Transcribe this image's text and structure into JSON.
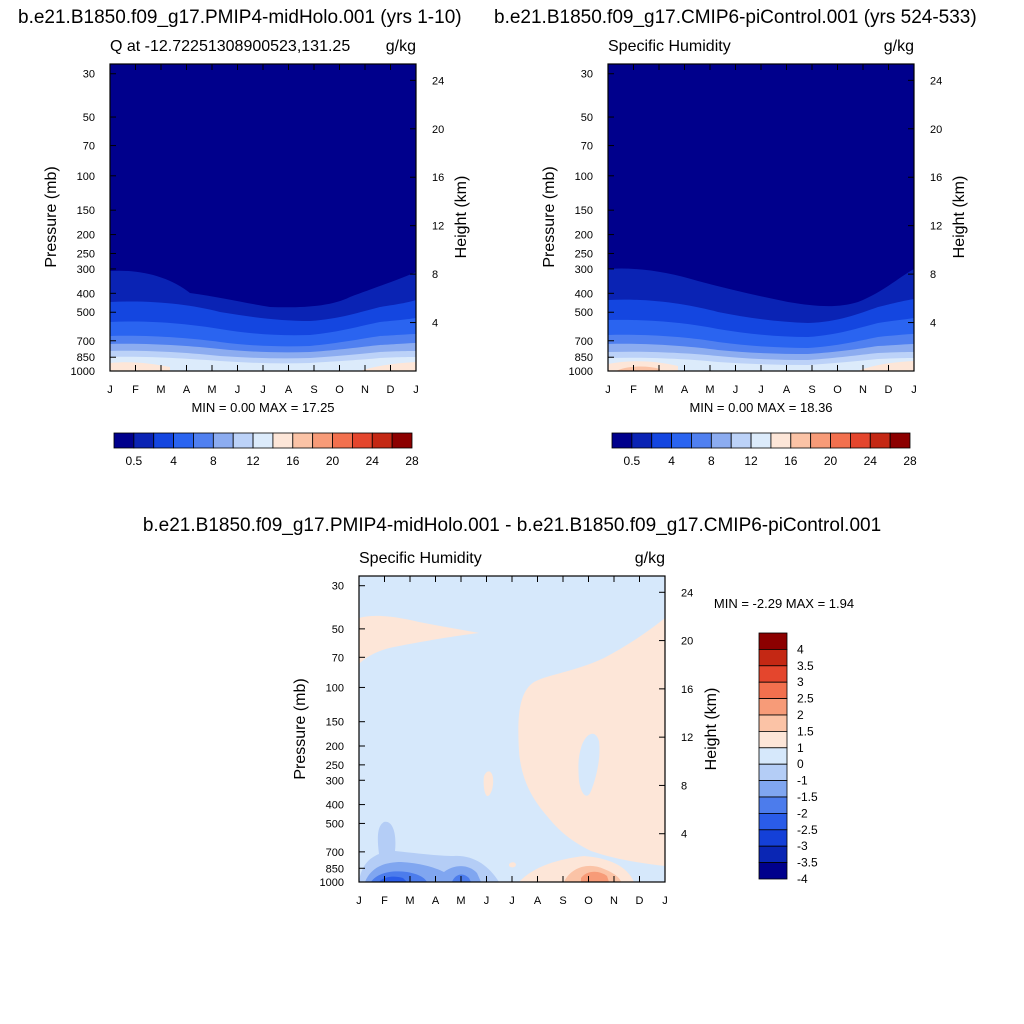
{
  "chart_data": [
    {
      "type": "heatmap",
      "title": "b.e21.B1850.f09_g17.PMIP4-midHolo.001 (yrs 1-10)",
      "subtitle_left": "Q at -12.72251308900523,131.25",
      "subtitle_right": "g/kg",
      "ylabel": "Pressure (mb)",
      "ylabel_right": "Height (km)",
      "x": [
        "J",
        "F",
        "M",
        "A",
        "M",
        "J",
        "J",
        "A",
        "S",
        "O",
        "N",
        "D",
        "J"
      ],
      "y_ticks": [
        "30",
        "50",
        "70",
        "100",
        "150",
        "200",
        "250",
        "300",
        "400",
        "500",
        "700",
        "850",
        "1000"
      ],
      "y_right_ticks": [
        "24",
        "20",
        "16",
        "12",
        "8",
        "4"
      ],
      "minmax": "MIN =   0.00 MAX =  17.25",
      "colorbar_labels": [
        "0.5",
        "4",
        "8",
        "12",
        "16",
        "20",
        "24",
        "28"
      ],
      "colorbar_colors": [
        "#00008c",
        "#0a23b4",
        "#1446e0",
        "#2a64f0",
        "#5080f0",
        "#8cacf0",
        "#bcd2f8",
        "#dcebfb",
        "#fde6d8",
        "#fbc3a6",
        "#f79b78",
        "#f2704e",
        "#e4462d",
        "#c42814",
        "#8c0000"
      ]
    },
    {
      "type": "heatmap",
      "title": "b.e21.B1850.f09_g17.CMIP6-piControl.001 (yrs 524-533)",
      "subtitle_left": "Specific Humidity",
      "subtitle_right": "g/kg",
      "ylabel": "Pressure (mb)",
      "ylabel_right": "Height (km)",
      "x": [
        "J",
        "F",
        "M",
        "A",
        "M",
        "J",
        "J",
        "A",
        "S",
        "O",
        "N",
        "D",
        "J"
      ],
      "y_ticks": [
        "30",
        "50",
        "70",
        "100",
        "150",
        "200",
        "250",
        "300",
        "400",
        "500",
        "700",
        "850",
        "1000"
      ],
      "y_right_ticks": [
        "24",
        "20",
        "16",
        "12",
        "8",
        "4"
      ],
      "minmax": "MIN =   0.00 MAX =  18.36",
      "colorbar_labels": [
        "0.5",
        "4",
        "8",
        "12",
        "16",
        "20",
        "24",
        "28"
      ],
      "colorbar_colors": [
        "#00008c",
        "#0a23b4",
        "#1446e0",
        "#2a64f0",
        "#5080f0",
        "#8cacf0",
        "#bcd2f8",
        "#dcebfb",
        "#fde6d8",
        "#fbc3a6",
        "#f79b78",
        "#f2704e",
        "#e4462d",
        "#c42814",
        "#8c0000"
      ]
    },
    {
      "type": "heatmap",
      "title": "b.e21.B1850.f09_g17.PMIP4-midHolo.001 - b.e21.B1850.f09_g17.CMIP6-piControl.001",
      "subtitle_left": "Specific Humidity",
      "subtitle_right": "g/kg",
      "ylabel": "Pressure (mb)",
      "ylabel_right": "Height (km)",
      "x": [
        "J",
        "F",
        "M",
        "A",
        "M",
        "J",
        "J",
        "A",
        "S",
        "O",
        "N",
        "D",
        "J"
      ],
      "y_ticks": [
        "30",
        "50",
        "70",
        "100",
        "150",
        "200",
        "250",
        "300",
        "400",
        "500",
        "700",
        "850",
        "1000"
      ],
      "y_right_ticks": [
        "24",
        "20",
        "16",
        "12",
        "8",
        "4"
      ],
      "minmax": "MIN =  -2.29 MAX =   1.94",
      "colorbar_labels": [
        "4",
        "3.5",
        "3",
        "2.5",
        "2",
        "1.5",
        "1",
        "0",
        "-1",
        "-1.5",
        "-2",
        "-2.5",
        "-3",
        "-3.5",
        "-4"
      ],
      "colorbar_colors": [
        "#8c0000",
        "#c42814",
        "#e4462d",
        "#f2704e",
        "#f79b78",
        "#fbc3a6",
        "#fde6d8",
        "#d6e8fb",
        "#b4cdf6",
        "#80a6f0",
        "#4c7cec",
        "#2a5ce8",
        "#1440d8",
        "#0a26b4",
        "#00008c"
      ]
    }
  ]
}
